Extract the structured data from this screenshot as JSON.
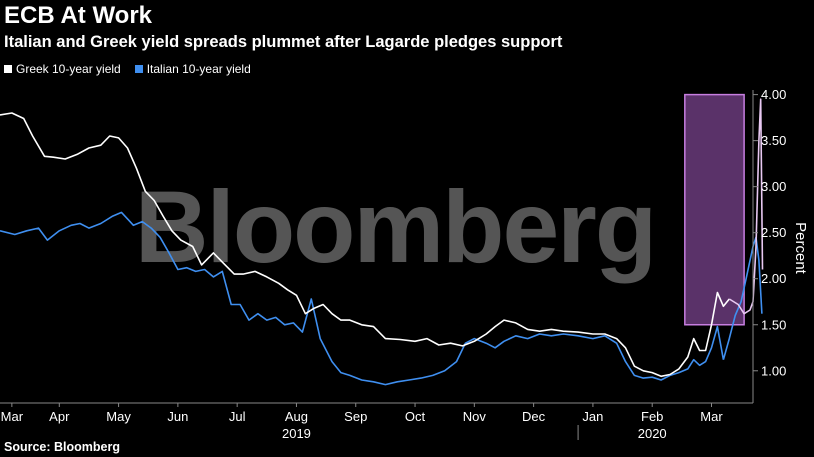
{
  "header": {
    "title": "ECB At Work",
    "subtitle": "Italian and Greek yield spreads plummet after Lagarde pledges support"
  },
  "footer": {
    "source": "Source: Bloomberg"
  },
  "watermark": "Bloomberg",
  "colors": {
    "greek": "#ffffff",
    "italian": "#3f8ff0",
    "highlight": "#a45bc0",
    "background": "#000000"
  },
  "chart_data": {
    "type": "line",
    "title": "ECB At Work",
    "subtitle": "Italian and Greek yield spreads plummet after Lagarde pledges support",
    "ylabel": "Percent",
    "ylim": [
      0.65,
      4.05
    ],
    "yticks": [
      "1.00",
      "1.50",
      "2.00",
      "2.50",
      "3.00",
      "3.50",
      "4.00"
    ],
    "x_range": [
      0,
      12.7
    ],
    "month_ticks": [
      {
        "label": "Mar",
        "x": 0.2
      },
      {
        "label": "Apr",
        "x": 1.0
      },
      {
        "label": "May",
        "x": 2.0
      },
      {
        "label": "Jun",
        "x": 3.0
      },
      {
        "label": "Jul",
        "x": 4.0
      },
      {
        "label": "Aug",
        "x": 5.0
      },
      {
        "label": "Sep",
        "x": 6.0
      },
      {
        "label": "Oct",
        "x": 7.0
      },
      {
        "label": "Nov",
        "x": 8.0
      },
      {
        "label": "Dec",
        "x": 9.0
      },
      {
        "label": "Jan",
        "x": 10.0
      },
      {
        "label": "Feb",
        "x": 11.0
      },
      {
        "label": "Mar",
        "x": 12.0
      }
    ],
    "year_labels": [
      {
        "label": "2019",
        "x": 5.0
      },
      {
        "label": "2020",
        "x": 11.0
      }
    ],
    "year_separator_x": 9.75,
    "highlight": {
      "x_start": 11.55,
      "x_end": 12.55,
      "y_start": 1.5,
      "y_end": 4.0
    },
    "legend_position": "top-left",
    "series": [
      {
        "name": "Greek 10-year yield",
        "color": "#ffffff",
        "highlight_color": "#e8c8f2",
        "x": [
          0.0,
          0.2,
          0.4,
          0.55,
          0.75,
          0.9,
          1.1,
          1.3,
          1.5,
          1.7,
          1.85,
          2.0,
          2.15,
          2.3,
          2.45,
          2.6,
          2.75,
          2.9,
          3.05,
          3.25,
          3.4,
          3.6,
          3.75,
          3.95,
          4.1,
          4.3,
          4.5,
          4.7,
          4.85,
          5.0,
          5.15,
          5.3,
          5.45,
          5.6,
          5.75,
          5.9,
          6.1,
          6.3,
          6.5,
          6.75,
          7.0,
          7.2,
          7.4,
          7.6,
          7.8,
          8.0,
          8.2,
          8.35,
          8.5,
          8.7,
          8.9,
          9.1,
          9.3,
          9.5,
          9.75,
          10.0,
          10.2,
          10.4,
          10.55,
          10.7,
          10.85,
          11.0,
          11.15,
          11.3,
          11.45,
          11.6,
          11.7,
          11.8,
          11.9,
          12.0,
          12.1,
          12.2,
          12.3
        ],
        "y": [
          3.78,
          3.8,
          3.74,
          3.55,
          3.33,
          3.32,
          3.3,
          3.35,
          3.42,
          3.45,
          3.55,
          3.53,
          3.42,
          3.2,
          2.95,
          2.85,
          2.68,
          2.52,
          2.42,
          2.35,
          2.15,
          2.28,
          2.18,
          2.05,
          2.05,
          2.08,
          2.02,
          1.95,
          1.88,
          1.82,
          1.62,
          1.68,
          1.72,
          1.62,
          1.55,
          1.55,
          1.5,
          1.48,
          1.35,
          1.34,
          1.32,
          1.35,
          1.28,
          1.3,
          1.27,
          1.32,
          1.4,
          1.48,
          1.55,
          1.52,
          1.45,
          1.43,
          1.45,
          1.43,
          1.42,
          1.4,
          1.4,
          1.35,
          1.25,
          1.05,
          1.0,
          0.98,
          0.94,
          0.96,
          1.02,
          1.15,
          1.35,
          1.22,
          1.22,
          1.5,
          1.85,
          1.7,
          1.78
        ],
        "highlight_x": [
          12.3,
          12.45,
          12.55,
          12.65,
          12.7,
          12.75,
          12.8,
          12.83,
          12.86
        ],
        "highlight_y": [
          1.78,
          1.72,
          1.62,
          1.66,
          1.75,
          2.35,
          3.5,
          3.95,
          2.1
        ]
      },
      {
        "name": "Italian 10-year yield",
        "color": "#3f8ff0",
        "highlight_color": "#3f8ff0",
        "x": [
          0.0,
          0.25,
          0.45,
          0.65,
          0.8,
          1.0,
          1.2,
          1.35,
          1.5,
          1.7,
          1.9,
          2.05,
          2.25,
          2.4,
          2.55,
          2.7,
          2.85,
          3.0,
          3.15,
          3.3,
          3.45,
          3.6,
          3.75,
          3.9,
          4.05,
          4.2,
          4.35,
          4.5,
          4.65,
          4.8,
          4.95,
          5.1,
          5.25,
          5.4,
          5.6,
          5.75,
          5.9,
          6.1,
          6.3,
          6.5,
          6.7,
          6.9,
          7.1,
          7.3,
          7.5,
          7.7,
          7.85,
          8.0,
          8.2,
          8.35,
          8.5,
          8.7,
          8.9,
          9.1,
          9.3,
          9.5,
          9.75,
          10.0,
          10.2,
          10.4,
          10.55,
          10.7,
          10.85,
          11.0,
          11.15,
          11.3,
          11.45,
          11.6,
          11.7,
          11.8,
          11.9,
          12.0,
          12.1,
          12.2
        ],
        "y": [
          2.52,
          2.48,
          2.52,
          2.55,
          2.42,
          2.52,
          2.58,
          2.6,
          2.55,
          2.6,
          2.68,
          2.72,
          2.58,
          2.62,
          2.55,
          2.45,
          2.28,
          2.1,
          2.12,
          2.08,
          2.1,
          2.02,
          2.08,
          1.72,
          1.72,
          1.55,
          1.62,
          1.55,
          1.58,
          1.5,
          1.52,
          1.42,
          1.78,
          1.35,
          1.1,
          0.98,
          0.95,
          0.9,
          0.88,
          0.85,
          0.88,
          0.9,
          0.92,
          0.95,
          1.0,
          1.1,
          1.3,
          1.35,
          1.3,
          1.25,
          1.32,
          1.38,
          1.35,
          1.4,
          1.38,
          1.4,
          1.38,
          1.35,
          1.38,
          1.3,
          1.1,
          0.95,
          0.92,
          0.93,
          0.9,
          0.95,
          0.98,
          1.02,
          1.12,
          1.06,
          1.1,
          1.25,
          1.48,
          1.12
        ],
        "highlight_x": [
          12.2,
          12.3,
          12.4,
          12.5,
          12.6,
          12.7,
          12.75,
          12.8,
          12.85
        ],
        "highlight_y": [
          1.12,
          1.35,
          1.6,
          1.75,
          2.05,
          2.35,
          2.45,
          2.2,
          1.62
        ]
      }
    ]
  }
}
